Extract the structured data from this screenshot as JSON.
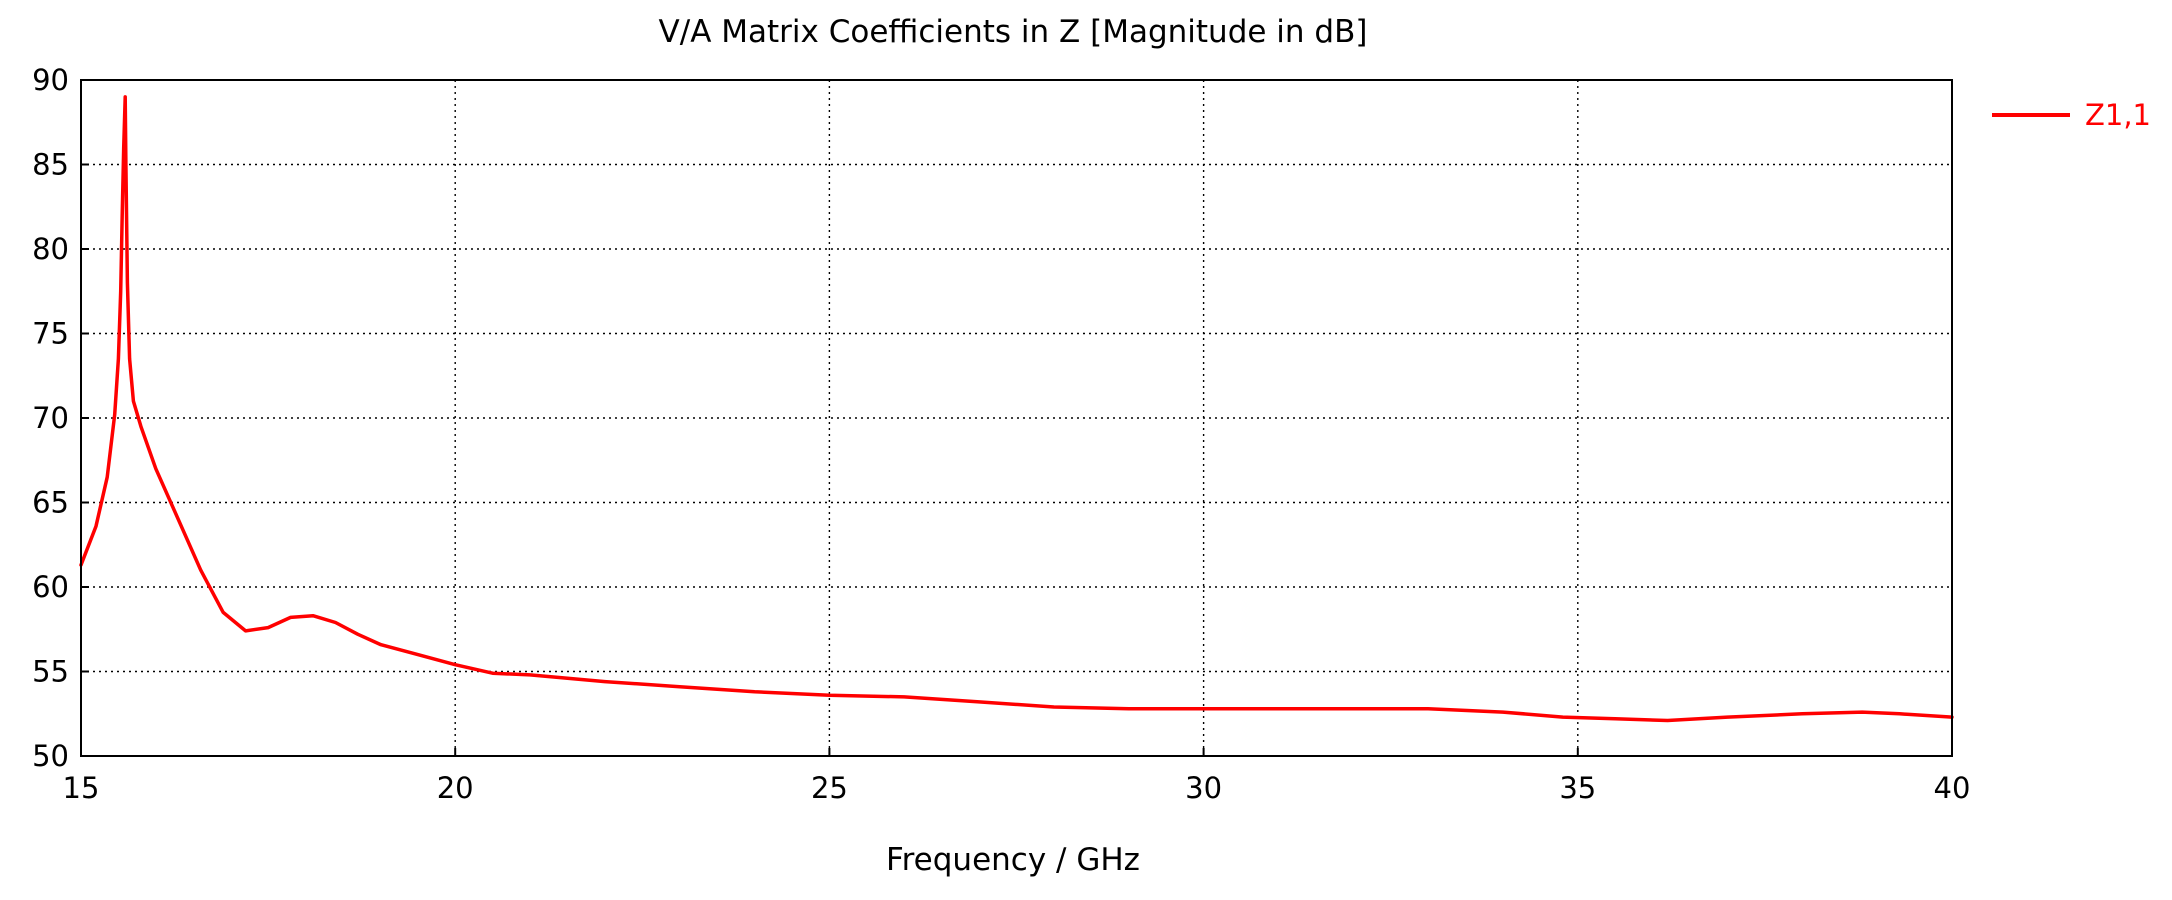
{
  "chart_data": {
    "type": "line",
    "title": "V/A Matrix Coefficients in Z [Magnitude in dB]",
    "xlabel": "Frequency / GHz",
    "ylabel": "",
    "xlim": [
      15,
      40
    ],
    "ylim": [
      50,
      90
    ],
    "xticks": [
      15,
      20,
      25,
      30,
      35,
      40
    ],
    "yticks": [
      50,
      55,
      60,
      65,
      70,
      75,
      80,
      85,
      90
    ],
    "grid": true,
    "legend_position": "top-right-outside",
    "series": [
      {
        "name": "Z1,1",
        "color": "#ff0000",
        "x": [
          15.0,
          15.2,
          15.35,
          15.45,
          15.5,
          15.53,
          15.55,
          15.57,
          15.59,
          15.6,
          15.62,
          15.65,
          15.7,
          15.8,
          16.0,
          16.3,
          16.6,
          16.9,
          17.2,
          17.5,
          17.8,
          18.1,
          18.4,
          18.7,
          19.0,
          19.5,
          20.0,
          20.5,
          21.0,
          21.5,
          22.0,
          23.0,
          24.0,
          25.0,
          26.0,
          27.0,
          28.0,
          29.0,
          30.0,
          31.0,
          32.0,
          33.0,
          34.0,
          34.8,
          35.5,
          36.2,
          37.0,
          38.0,
          38.8,
          39.3,
          40.0
        ],
        "values": [
          61.3,
          63.6,
          66.5,
          70.2,
          73.5,
          77.5,
          82.0,
          86.0,
          89.0,
          85.0,
          78.0,
          73.5,
          71.0,
          69.5,
          67.0,
          64.0,
          61.0,
          58.5,
          57.4,
          57.6,
          58.2,
          58.3,
          57.9,
          57.2,
          56.6,
          56.0,
          55.4,
          54.9,
          54.8,
          54.6,
          54.4,
          54.1,
          53.8,
          53.6,
          53.5,
          53.2,
          52.9,
          52.8,
          52.8,
          52.8,
          52.8,
          52.8,
          52.6,
          52.3,
          52.2,
          52.1,
          52.3,
          52.5,
          52.6,
          52.5,
          52.3
        ]
      }
    ]
  }
}
